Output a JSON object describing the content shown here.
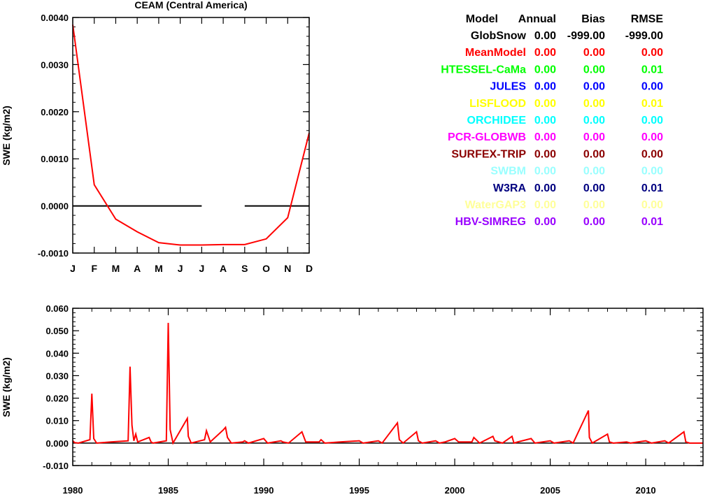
{
  "chart_data": [
    {
      "type": "line",
      "title": "CEAM (Central America)",
      "xlabel": "",
      "ylabel": "SWE (kg/m2)",
      "categories": [
        "J",
        "F",
        "M",
        "A",
        "M",
        "J",
        "J",
        "A",
        "S",
        "O",
        "N",
        "D"
      ],
      "ylim": [
        -0.001,
        0.004
      ],
      "yticks": [
        "0.0040",
        "0.0030",
        "0.0020",
        "0.0010",
        "0.0000",
        "-0.0010"
      ],
      "yticks_values": [
        0.004,
        0.003,
        0.002,
        0.001,
        0.0,
        -0.001
      ],
      "series": [
        {
          "name": "MeanModel",
          "color": "#ff0000",
          "values": [
            0.00385,
            0.00045,
            -0.00028,
            -0.00055,
            -0.00078,
            -0.00083,
            -0.00083,
            -0.00082,
            -0.00082,
            -0.0007,
            -0.00025,
            0.00155
          ]
        }
      ],
      "zero_line_segments": [
        [
          "J",
          "J"
        ],
        [
          "S",
          "D"
        ]
      ]
    },
    {
      "type": "line",
      "title": "",
      "xlabel": "",
      "ylabel": "SWE (kg/m2)",
      "xlim": [
        1980,
        2013
      ],
      "xticks": [
        "1980",
        "1985",
        "1990",
        "1995",
        "2000",
        "2005",
        "2010"
      ],
      "xticks_values": [
        1980,
        1985,
        1990,
        1995,
        2000,
        2005,
        2010
      ],
      "ylim": [
        -0.01,
        0.06
      ],
      "yticks": [
        "0.060",
        "0.050",
        "0.040",
        "0.030",
        "0.020",
        "0.010",
        "0.000",
        "-0.010"
      ],
      "yticks_values": [
        0.06,
        0.05,
        0.04,
        0.03,
        0.02,
        0.01,
        0.0,
        -0.01
      ],
      "series": [
        {
          "name": "MeanModel",
          "color": "#ff0000",
          "x": [
            1980.0,
            1980.1,
            1980.3,
            1980.9,
            1981.0,
            1981.1,
            1981.25,
            1982.0,
            1982.9,
            1983.0,
            1983.1,
            1983.2,
            1983.3,
            1983.4,
            1984.0,
            1984.1,
            1984.2,
            1984.9,
            1985.0,
            1985.1,
            1985.25,
            1986.0,
            1986.05,
            1986.2,
            1986.9,
            1987.0,
            1987.2,
            1987.9,
            1988.0,
            1988.1,
            1988.3,
            1988.9,
            1989.0,
            1989.2,
            1990.0,
            1990.2,
            1990.9,
            1991.0,
            1991.3,
            1992.0,
            1992.2,
            1992.9,
            1993.0,
            1993.2,
            1994.0,
            1995.0,
            1995.2,
            1996.0,
            1996.2,
            1997.0,
            1997.1,
            1997.3,
            1998.0,
            1998.1,
            1998.3,
            1999.0,
            1999.2,
            1999.5,
            2000.0,
            2000.2,
            2000.9,
            2001.0,
            2001.3,
            2002.0,
            2002.1,
            2002.3,
            2002.5,
            2003.0,
            2003.1,
            2003.3,
            2004.0,
            2004.2,
            2005.0,
            2005.2,
            2006.0,
            2006.2,
            2007.0,
            2007.05,
            2007.2,
            2008.0,
            2008.1,
            2008.3,
            2009.0,
            2009.2,
            2010.0,
            2010.3,
            2011.0,
            2011.2,
            2012.0,
            2012.1,
            2012.3,
            2013.0
          ],
          "values": [
            0.001,
            0.0002,
            0.0,
            0.0015,
            0.022,
            0.002,
            0.0,
            0.0005,
            0.001,
            0.034,
            0.008,
            0.001,
            0.004,
            0.0005,
            0.0025,
            0.0005,
            0.0,
            0.001,
            0.0535,
            0.006,
            0.0,
            0.011,
            0.003,
            0.0,
            0.0015,
            0.0055,
            0.0005,
            0.006,
            0.007,
            0.0025,
            0.0,
            0.0005,
            0.001,
            0.0,
            0.002,
            0.0,
            0.001,
            0.0005,
            0.0,
            0.005,
            0.0005,
            0.0005,
            0.0015,
            0.0,
            0.0005,
            0.001,
            0.0,
            0.001,
            0.0,
            0.009,
            0.0015,
            0.0,
            0.005,
            0.001,
            0.0,
            0.001,
            0.0,
            0.0005,
            0.002,
            0.0005,
            0.0005,
            0.0025,
            0.0,
            0.003,
            0.001,
            0.0005,
            0.0,
            0.003,
            0.0,
            0.0005,
            0.002,
            0.0,
            0.001,
            0.0,
            0.001,
            0.0,
            0.0145,
            0.0025,
            0.0,
            0.004,
            0.0005,
            0.0,
            0.0005,
            0.0,
            0.001,
            0.0,
            0.001,
            0.0,
            0.005,
            0.0005,
            0.0,
            0.0
          ]
        }
      ]
    }
  ],
  "stats_table": {
    "headers": [
      "Model",
      "Annual",
      "Bias",
      "RMSE"
    ],
    "rows": [
      {
        "model": "GlobSnow",
        "annual": "0.00",
        "bias": "-999.00",
        "rmse": "-999.00",
        "color": "#000000"
      },
      {
        "model": "MeanModel",
        "annual": "0.00",
        "bias": "0.00",
        "rmse": "0.00",
        "color": "#ff0000"
      },
      {
        "model": "HTESSEL-CaMa",
        "annual": "0.00",
        "bias": "0.00",
        "rmse": "0.01",
        "color": "#00ff00"
      },
      {
        "model": "JULES",
        "annual": "0.00",
        "bias": "0.00",
        "rmse": "0.00",
        "color": "#0000ff"
      },
      {
        "model": "LISFLOOD",
        "annual": "0.00",
        "bias": "0.00",
        "rmse": "0.01",
        "color": "#ffff00"
      },
      {
        "model": "ORCHIDEE",
        "annual": "0.00",
        "bias": "0.00",
        "rmse": "0.00",
        "color": "#00ffff"
      },
      {
        "model": "PCR-GLOBWB",
        "annual": "0.00",
        "bias": "0.00",
        "rmse": "0.00",
        "color": "#ff00ff"
      },
      {
        "model": "SURFEX-TRIP",
        "annual": "0.00",
        "bias": "0.00",
        "rmse": "0.00",
        "color": "#8b0000"
      },
      {
        "model": "SWBM",
        "annual": "0.00",
        "bias": "0.00",
        "rmse": "0.00",
        "color": "#99ffff"
      },
      {
        "model": "W3RA",
        "annual": "0.00",
        "bias": "0.00",
        "rmse": "0.01",
        "color": "#000080"
      },
      {
        "model": "WaterGAP3",
        "annual": "0.00",
        "bias": "0.00",
        "rmse": "0.00",
        "color": "#ffff99"
      },
      {
        "model": "HBV-SIMREG",
        "annual": "0.00",
        "bias": "0.00",
        "rmse": "0.01",
        "color": "#9900ff"
      }
    ]
  }
}
